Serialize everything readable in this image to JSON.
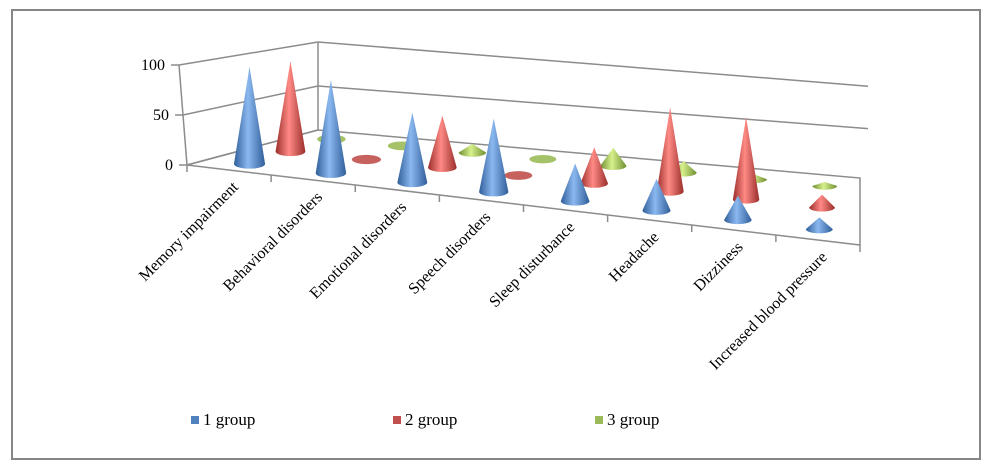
{
  "chart_data": {
    "type": "bar",
    "subtype": "3d-cone",
    "title": "",
    "xlabel": "",
    "ylabel": "",
    "ylim": [
      0,
      100
    ],
    "yticks": [
      "0",
      "50",
      "100"
    ],
    "grid": true,
    "legend_position": "bottom",
    "categories": [
      "Memory impairment",
      "Behavioral disorders",
      "Emotional disorders",
      "Speech disorders",
      "Sleep disturbance",
      "Headache",
      "Dizziness",
      "Increased blood pressure"
    ],
    "series": [
      {
        "name": "1 group",
        "color": "#4F81BD",
        "values": [
          100,
          98,
          75,
          80,
          42,
          36,
          28,
          14
        ]
      },
      {
        "name": "2 group",
        "color": "#C0504D",
        "values": [
          97,
          0,
          58,
          0,
          42,
          100,
          100,
          16
        ]
      },
      {
        "name": "3 group",
        "color": "#9BBB59",
        "values": [
          0,
          0,
          10,
          0,
          22,
          14,
          6,
          5
        ]
      }
    ]
  }
}
